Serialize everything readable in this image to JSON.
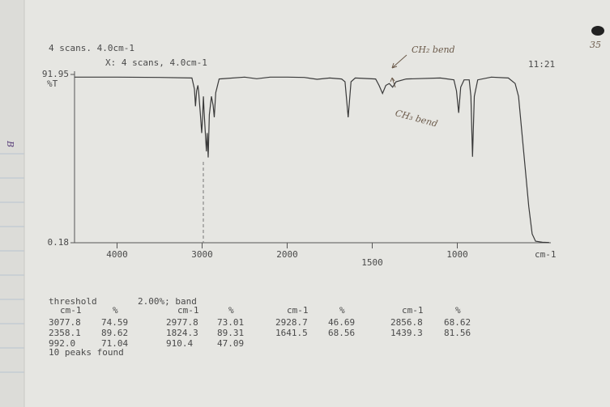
{
  "chart_data": {
    "type": "line",
    "header": "4 scans. 4.0cm-1",
    "subheader": "X: 4 scans, 4.0cm-1",
    "time": "11:21",
    "ylabel": "%T",
    "xlabel": "cm-1",
    "xlim": [
      4500,
      450
    ],
    "xbreak": 2000,
    "ylim": [
      0.18,
      91.95
    ],
    "yticks": [
      0.18,
      {
        "value": 91.95,
        "label": "91.95"
      }
    ],
    "xticks": [
      4000,
      3000,
      2000,
      1500,
      1000
    ],
    "series": [
      {
        "color": "#3a3a3a",
        "x": [
          4500,
          4000,
          3500,
          3120,
          3100,
          3090,
          3077.8,
          3065,
          3050,
          3040,
          3020,
          3005,
          2995,
          2985,
          2977.8,
          2965,
          2950,
          2940,
          2928.7,
          2915,
          2890,
          2870,
          2856.8,
          2840,
          2800,
          2500,
          2358.1,
          2200,
          2000,
          1900,
          1824.3,
          1750,
          1680,
          1660,
          1641.5,
          1625,
          1600,
          1480,
          1460,
          1439.3,
          1420,
          1400,
          1380,
          1360,
          1300,
          1100,
          1020,
          1005,
          992.0,
          980,
          960,
          930,
          920,
          910.4,
          900,
          880,
          800,
          700,
          660,
          640,
          620,
          600,
          580,
          560,
          540,
          500,
          460
        ],
        "values": [
          90.5,
          90.5,
          90.3,
          90,
          86,
          84,
          74.59,
          83,
          86,
          82,
          70,
          60,
          68,
          80,
          73.01,
          62,
          50,
          60,
          46.69,
          70,
          80,
          75,
          68.62,
          82,
          89.5,
          90.5,
          89.62,
          90.5,
          90.5,
          90.3,
          89.31,
          90,
          89.5,
          88,
          68.56,
          88,
          90,
          89.5,
          86,
          81.56,
          86,
          87,
          85,
          88,
          89.5,
          90,
          89,
          83,
          71.04,
          85,
          89,
          89,
          80,
          47.09,
          80,
          89,
          90.5,
          90,
          87,
          80,
          60,
          40,
          20,
          5,
          1,
          0.5,
          0.3
        ]
      }
    ],
    "annotations": [
      "CH₂ bend",
      "CH₃ bend",
      "35",
      "B"
    ]
  },
  "peak_table": {
    "title": "threshold",
    "setting": "2.00%; band",
    "headers": [
      "cm-1",
      "%",
      "cm-1",
      "%",
      "cm-1",
      "%",
      "cm-1",
      "%"
    ],
    "rows": [
      [
        "3077.8",
        "74.59",
        "2977.8",
        "73.01",
        "2928.7",
        "46.69",
        "2856.8",
        "68.62"
      ],
      [
        "2358.1",
        "89.62",
        "1824.3",
        "89.31",
        "1641.5",
        "68.56",
        "1439.3",
        "81.56"
      ],
      [
        "992.0",
        "71.04",
        "910.4",
        "47.09"
      ]
    ],
    "footer": "10 peaks found"
  }
}
